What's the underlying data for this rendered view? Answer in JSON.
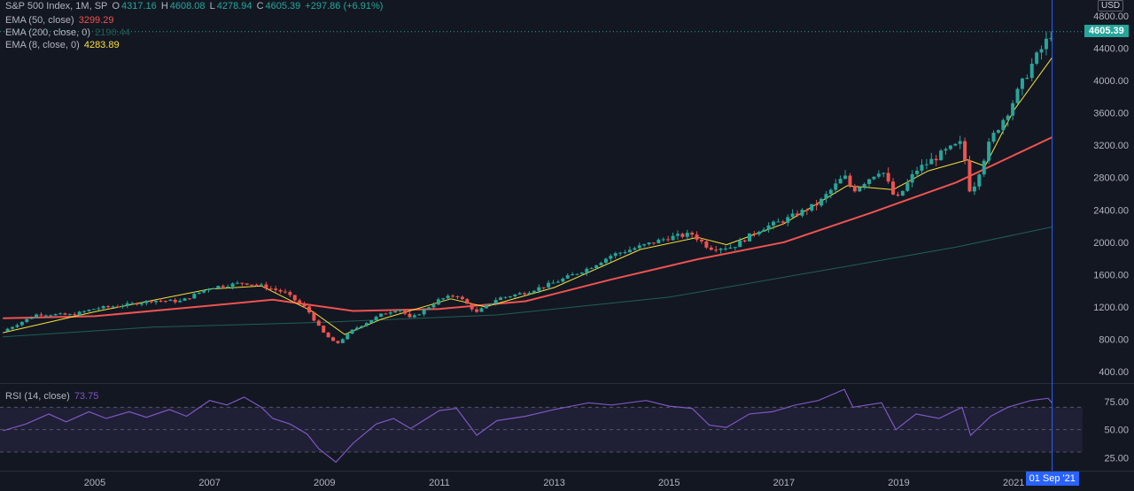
{
  "header": {
    "symbol": "S&P 500 Index, 1M, SP",
    "open_label": "O",
    "open": "4317.16",
    "high_label": "H",
    "high": "4608.08",
    "low_label": "L",
    "low": "4278.94",
    "close_label": "C",
    "close": "4605.39",
    "change": "+297.86 (+6.91%)"
  },
  "indicators": [
    {
      "name": "EMA (50, close)",
      "value": "3299.29"
    },
    {
      "name": "EMA (200, close, 0)",
      "value": "2190.44"
    },
    {
      "name": "EMA (8, close, 0)",
      "value": "4283.89"
    }
  ],
  "rsi": {
    "name": "RSI (14, close)",
    "value": "73.75"
  },
  "currency": "USD",
  "last_price": "4605.39",
  "crosshair_date": "01 Sep '21",
  "colors": {
    "background": "#131722",
    "up": "#26a69a",
    "down": "#ef5350",
    "ema50": "#ef5350",
    "ema200": "#1f5f56",
    "ema8": "#f7e13b",
    "rsi": "#7e57c2",
    "crosshair": "#2962ff"
  },
  "chart_data": [
    {
      "type": "candlestick",
      "ylim": [
        400,
        4800
      ],
      "y_ticks": [
        400,
        800,
        1200,
        1600,
        2000,
        2400,
        2800,
        3200,
        3600,
        4000,
        4400,
        4800
      ],
      "y_tick_labels": [
        "400.00",
        "800.00",
        "1200.00",
        "1600.00",
        "2000.00",
        "2400.00",
        "2800.00",
        "3200.00",
        "3600.00",
        "4000.00",
        "4400.00",
        "4800.00"
      ],
      "x_tick_labels": [
        "2005",
        "2007",
        "2009",
        "2011",
        "2013",
        "2015",
        "2017",
        "2019",
        "2021"
      ],
      "x_tick_years": [
        2005,
        2007,
        2009,
        2011,
        2013,
        2015,
        2017,
        2019,
        2021
      ],
      "xlim_years": [
        2003.35,
        2022.2
      ],
      "crosshair_year": 2021.67,
      "price_anchors": [
        [
          2003.4,
          900
        ],
        [
          2004.0,
          1110
        ],
        [
          2004.6,
          1100
        ],
        [
          2005.0,
          1180
        ],
        [
          2005.6,
          1230
        ],
        [
          2006.0,
          1280
        ],
        [
          2006.5,
          1270
        ],
        [
          2007.0,
          1440
        ],
        [
          2007.6,
          1500
        ],
        [
          2007.85,
          1470
        ],
        [
          2008.3,
          1380
        ],
        [
          2008.7,
          1170
        ],
        [
          2008.95,
          900
        ],
        [
          2009.2,
          735
        ],
        [
          2009.5,
          920
        ],
        [
          2010.0,
          1110
        ],
        [
          2010.3,
          1180
        ],
        [
          2010.5,
          1050
        ],
        [
          2011.0,
          1290
        ],
        [
          2011.3,
          1350
        ],
        [
          2011.65,
          1130
        ],
        [
          2012.0,
          1300
        ],
        [
          2012.5,
          1380
        ],
        [
          2013.0,
          1500
        ],
        [
          2013.6,
          1680
        ],
        [
          2014.0,
          1840
        ],
        [
          2014.6,
          1970
        ],
        [
          2015.0,
          2060
        ],
        [
          2015.4,
          2100
        ],
        [
          2015.7,
          1930
        ],
        [
          2016.1,
          1940
        ],
        [
          2016.6,
          2170
        ],
        [
          2017.0,
          2270
        ],
        [
          2017.6,
          2480
        ],
        [
          2018.05,
          2820
        ],
        [
          2018.2,
          2640
        ],
        [
          2018.7,
          2910
        ],
        [
          2018.95,
          2510
        ],
        [
          2019.3,
          2890
        ],
        [
          2019.8,
          3120
        ],
        [
          2020.1,
          3230
        ],
        [
          2020.25,
          2590
        ],
        [
          2020.6,
          3270
        ],
        [
          2020.9,
          3620
        ],
        [
          2021.3,
          4180
        ],
        [
          2021.6,
          4520
        ],
        [
          2021.67,
          4605
        ]
      ],
      "series": [
        {
          "name": "EMA (50, close)",
          "points": [
            [
              2003.4,
              1060
            ],
            [
              2005,
              1085
            ],
            [
              2007,
              1215
            ],
            [
              2008.1,
              1290
            ],
            [
              2009.5,
              1150
            ],
            [
              2011,
              1175
            ],
            [
              2012.5,
              1270
            ],
            [
              2014,
              1540
            ],
            [
              2015.5,
              1790
            ],
            [
              2017,
              2000
            ],
            [
              2018.5,
              2360
            ],
            [
              2020,
              2740
            ],
            [
              2021.67,
              3299
            ]
          ]
        },
        {
          "name": "EMA (200, close, 0)",
          "points": [
            [
              2003.4,
              830
            ],
            [
              2006,
              950
            ],
            [
              2009,
              1010
            ],
            [
              2012,
              1100
            ],
            [
              2015,
              1320
            ],
            [
              2018,
              1690
            ],
            [
              2020,
              1940
            ],
            [
              2021.67,
              2190
            ]
          ]
        },
        {
          "name": "EMA (8, close, 0)",
          "points": [
            [
              2003.4,
              880
            ],
            [
              2005,
              1140
            ],
            [
              2007,
              1420
            ],
            [
              2007.9,
              1460
            ],
            [
              2008.8,
              1140
            ],
            [
              2009.35,
              860
            ],
            [
              2010,
              1050
            ],
            [
              2011.2,
              1300
            ],
            [
              2011.8,
              1200
            ],
            [
              2013,
              1440
            ],
            [
              2014.5,
              1910
            ],
            [
              2015.5,
              2060
            ],
            [
              2016,
              1970
            ],
            [
              2017,
              2230
            ],
            [
              2018.1,
              2700
            ],
            [
              2018.9,
              2650
            ],
            [
              2019.5,
              2880
            ],
            [
              2020.2,
              3020
            ],
            [
              2020.5,
              2940
            ],
            [
              2021,
              3630
            ],
            [
              2021.67,
              4284
            ]
          ]
        }
      ]
    },
    {
      "type": "line",
      "title": "RSI (14, close)",
      "ylim": [
        15,
        90
      ],
      "y_ticks": [
        25,
        50,
        75
      ],
      "y_tick_labels": [
        "25.00",
        "50.00",
        "75.00"
      ],
      "band": [
        30,
        70
      ],
      "series": [
        {
          "name": "RSI (14, close)",
          "points": [
            [
              2003.4,
              49
            ],
            [
              2003.8,
              55
            ],
            [
              2004.2,
              64
            ],
            [
              2004.5,
              57
            ],
            [
              2004.9,
              66
            ],
            [
              2005.2,
              60
            ],
            [
              2005.6,
              66
            ],
            [
              2005.9,
              61
            ],
            [
              2006.3,
              68
            ],
            [
              2006.6,
              62
            ],
            [
              2007.0,
              76
            ],
            [
              2007.3,
              72
            ],
            [
              2007.6,
              79
            ],
            [
              2007.9,
              70
            ],
            [
              2008.1,
              60
            ],
            [
              2008.4,
              55
            ],
            [
              2008.7,
              46
            ],
            [
              2008.9,
              33
            ],
            [
              2009.2,
              21
            ],
            [
              2009.5,
              38
            ],
            [
              2009.9,
              55
            ],
            [
              2010.2,
              60
            ],
            [
              2010.5,
              51
            ],
            [
              2011.0,
              67
            ],
            [
              2011.3,
              69
            ],
            [
              2011.65,
              45
            ],
            [
              2012.0,
              58
            ],
            [
              2012.5,
              62
            ],
            [
              2013.0,
              68
            ],
            [
              2013.6,
              74
            ],
            [
              2014.0,
              72
            ],
            [
              2014.6,
              76
            ],
            [
              2015.0,
              71
            ],
            [
              2015.4,
              69
            ],
            [
              2015.7,
              54
            ],
            [
              2016.0,
              52
            ],
            [
              2016.4,
              64
            ],
            [
              2016.8,
              66
            ],
            [
              2017.2,
              72
            ],
            [
              2017.6,
              76
            ],
            [
              2018.05,
              86
            ],
            [
              2018.2,
              70
            ],
            [
              2018.7,
              74
            ],
            [
              2018.95,
              50
            ],
            [
              2019.3,
              64
            ],
            [
              2019.7,
              60
            ],
            [
              2020.1,
              70
            ],
            [
              2020.25,
              45
            ],
            [
              2020.6,
              62
            ],
            [
              2020.9,
              70
            ],
            [
              2021.3,
              76
            ],
            [
              2021.6,
              78
            ],
            [
              2021.67,
              73.75
            ]
          ]
        }
      ]
    }
  ]
}
